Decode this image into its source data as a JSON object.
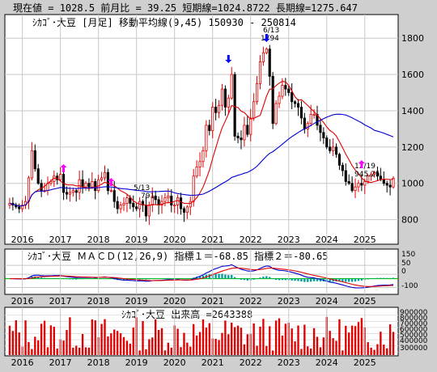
{
  "header": {
    "current_label": "現在値",
    "current_value": "1028.5",
    "change_label": "前月比",
    "change_value": "39.25",
    "short_label": "短期線",
    "short_value": "1024.8722",
    "long_label": "長期線",
    "long_value": "1275.647"
  },
  "price_panel": {
    "title": "ｼｶｺﾞ･大豆 [月足]  移動平均線(9,45)  150930 - 250814",
    "annotations": {
      "high_date": "6/13",
      "high_value": "1794",
      "low_date": "5/13",
      "low_value": "791",
      "recent_date": "12/19",
      "recent_value": "945.25"
    }
  },
  "macd_panel": {
    "title": "ｼｶｺﾞ･大豆   ＭＡＣＤ(12,26,9)",
    "ind1_label": "指標１",
    "ind1_value": "-68.85",
    "ind2_label": "指標２",
    "ind2_value": "-80.65",
    "yticks": [
      "150",
      "50",
      "0",
      "-100"
    ]
  },
  "volume_panel": {
    "title": "ｼｶｺﾞ･大豆   出来高",
    "value": "2643388",
    "yticks": [
      "900000",
      "800000",
      "700000",
      "600000",
      "500000",
      "400000",
      "300000"
    ]
  },
  "colors": {
    "up": "#e00000",
    "down": "#000000",
    "ma_short": "#e00000",
    "ma_long": "#0000d0",
    "macd_line": "#0000d0",
    "signal_line": "#e00000",
    "hist": "#00a0a0",
    "zero_line": "#00c000",
    "volume": "#e00000",
    "arrow_blue": "#0000ff",
    "arrow_magenta": "#ff00ff"
  },
  "chart_data": [
    {
      "type": "candlestick",
      "x_start": "2015-09",
      "x_end": "2025-08",
      "x_tick_labels": [
        "2016",
        "2017",
        "2018",
        "2019",
        "2020",
        "2021",
        "2022",
        "2023",
        "2024",
        "2025"
      ],
      "ylim": [
        700,
        1850
      ],
      "yticks": [
        800,
        1000,
        1200,
        1400,
        1600,
        1800
      ],
      "close": [
        890,
        880,
        870,
        860,
        880,
        900,
        1030,
        1180,
        1080,
        1000,
        960,
        960,
        1000,
        1010,
        1040,
        1020,
        1050,
        950,
        940,
        950,
        960,
        950,
        1020,
        980,
        1000,
        980,
        1010,
        960,
        1020,
        1030,
        1060,
        960,
        960,
        900,
        860,
        880,
        890,
        920,
        890,
        870,
        860,
        900,
        880,
        820,
        880,
        930,
        910,
        880,
        900,
        920,
        930,
        880,
        880,
        920,
        860,
        840,
        870,
        900,
        1040,
        1090,
        1120,
        1180,
        1320,
        1290,
        1420,
        1390,
        1430,
        1520,
        1420,
        1470,
        1600,
        1260,
        1250,
        1240,
        1320,
        1270,
        1360,
        1450,
        1550,
        1670,
        1720,
        1740,
        1590,
        1330,
        1440,
        1480,
        1540,
        1520,
        1500,
        1450,
        1440,
        1420,
        1360,
        1300,
        1330,
        1380,
        1380,
        1320,
        1280,
        1250,
        1200,
        1180,
        1200,
        1160,
        1100,
        1070,
        1010,
        1000,
        960,
        980,
        1000,
        990,
        1010,
        1040,
        1050,
        1060,
        1040,
        1020,
        1000,
        990,
        980,
        1028.5
      ]
    },
    {
      "type": "line",
      "name": "MACD(12,26,9)",
      "ylim": [
        -160,
        170
      ]
    },
    {
      "type": "bar",
      "name": "出来高",
      "ylim": [
        250000,
        950000
      ]
    }
  ]
}
